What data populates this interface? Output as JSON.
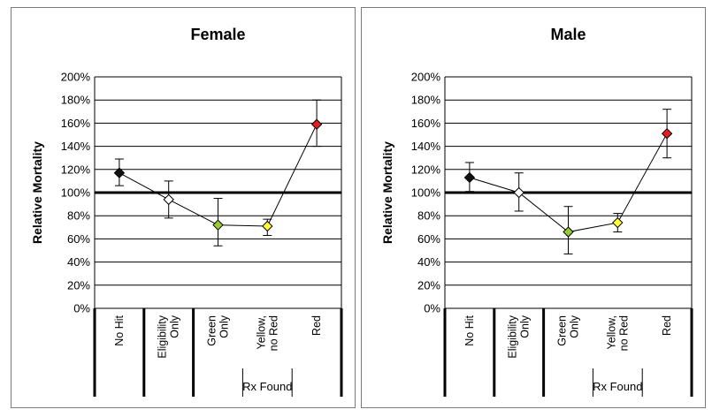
{
  "chart_data": [
    {
      "type": "line",
      "title": "Female",
      "ylabel": "Relative Mortality",
      "ylim": [
        0,
        200
      ],
      "yticks": [
        "0%",
        "20%",
        "40%",
        "60%",
        "80%",
        "100%",
        "120%",
        "140%",
        "160%",
        "180%",
        "200%"
      ],
      "reference_line": 100,
      "categories": [
        {
          "lines": [
            "No Hit"
          ],
          "value": 117,
          "err_low": 106,
          "err_high": 129,
          "color": "#111111"
        },
        {
          "lines": [
            "Eligibility",
            "Only"
          ],
          "value": 94,
          "err_low": 78,
          "err_high": 110,
          "color": "#ffffff"
        },
        {
          "lines": [
            "Green",
            "Only"
          ],
          "value": 72,
          "err_low": 54,
          "err_high": 95,
          "color": "#99cc33"
        },
        {
          "lines": [
            "Yellow,",
            "no Red"
          ],
          "value": 71,
          "err_low": 63,
          "err_high": 77,
          "color": "#ffff33"
        },
        {
          "lines": [
            "Red"
          ],
          "value": 159,
          "err_low": 140,
          "err_high": 180,
          "color": "#e02020"
        }
      ],
      "group_label": "Rx Found"
    },
    {
      "type": "line",
      "title": "Male",
      "ylabel": "Relative Mortality",
      "ylim": [
        0,
        200
      ],
      "yticks": [
        "0%",
        "20%",
        "40%",
        "60%",
        "80%",
        "100%",
        "120%",
        "140%",
        "160%",
        "180%",
        "200%"
      ],
      "reference_line": 100,
      "categories": [
        {
          "lines": [
            "No Hit"
          ],
          "value": 113,
          "err_low": 101,
          "err_high": 126,
          "color": "#111111"
        },
        {
          "lines": [
            "Eligibility",
            "Only"
          ],
          "value": 100,
          "err_low": 84,
          "err_high": 117,
          "color": "#ffffff"
        },
        {
          "lines": [
            "Green",
            "Only"
          ],
          "value": 66,
          "err_low": 47,
          "err_high": 88,
          "color": "#99cc33"
        },
        {
          "lines": [
            "Yellow,",
            "no Red"
          ],
          "value": 74,
          "err_low": 66,
          "err_high": 82,
          "color": "#ffff33"
        },
        {
          "lines": [
            "Red"
          ],
          "value": 151,
          "err_low": 130,
          "err_high": 172,
          "color": "#e02020"
        }
      ],
      "group_label": "Rx Found"
    }
  ]
}
